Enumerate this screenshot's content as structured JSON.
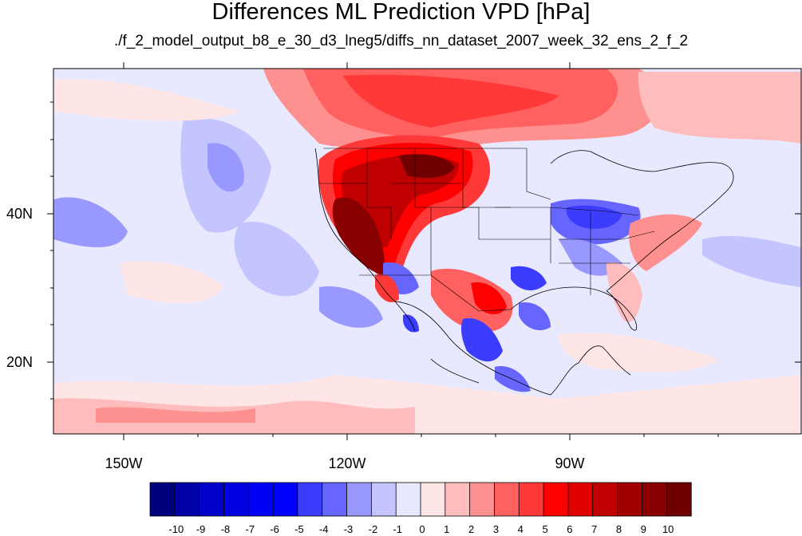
{
  "title": "Differences ML Prediction VPD [hPa]",
  "subtitle": "./f_2_model_output_b8_e_30_d3_lneg5/diffs_nn_dataset_2007_week_32_ens_2_f_2",
  "axes": {
    "lat_labels": [
      {
        "text": "40N",
        "lat": 40
      },
      {
        "text": "20N",
        "lat": 20
      }
    ],
    "lon_labels": [
      {
        "text": "150W",
        "lon": -150
      },
      {
        "text": "120W",
        "lon": -120
      },
      {
        "text": "90W",
        "lon": -90
      }
    ],
    "lon_range": [
      -160,
      -60
    ],
    "lat_range": [
      10,
      59
    ]
  },
  "colorbar": {
    "labels": [
      "-10",
      "-9",
      "-8",
      "-7",
      "-6",
      "-5",
      "-4",
      "-3",
      "-2",
      "-1",
      "0",
      "1",
      "2",
      "3",
      "4",
      "5",
      "6",
      "7",
      "8",
      "9",
      "10"
    ],
    "colors": [
      "#00007e",
      "#0000a8",
      "#0000c8",
      "#0000e0",
      "#0000f4",
      "#0000ff",
      "#3c3cff",
      "#6666ff",
      "#9898ff",
      "#c4c4ff",
      "#e8e8ff",
      "#ffe6e6",
      "#ffbcbc",
      "#ff9090",
      "#ff6060",
      "#ff3838",
      "#ff0000",
      "#e00000",
      "#c00000",
      "#a00000",
      "#880000",
      "#700000"
    ]
  }
}
